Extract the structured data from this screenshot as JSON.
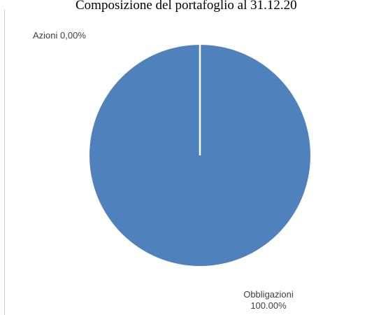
{
  "chart_data": {
    "type": "pie",
    "title": "Composizione del portafoglio al 31.12.20",
    "slices": [
      {
        "name": "Azioni",
        "value": 0.0,
        "label": "Azioni 0,00%"
      },
      {
        "name": "Obbligazioni",
        "value": 100.0,
        "label_line1": "Obbligazioni",
        "label_line2": "100.00%"
      }
    ],
    "colors": {
      "fill": "#4f81bd",
      "separator": "#ffffff",
      "label_text": "#404040"
    }
  }
}
